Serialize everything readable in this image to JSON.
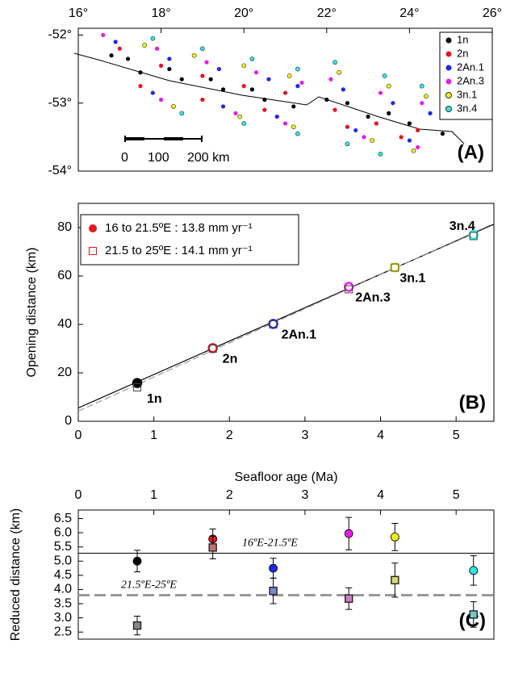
{
  "chart_data": [
    {
      "type": "scatter",
      "panel_label": "(A)",
      "xlim": [
        16,
        26
      ],
      "ylim": [
        -54,
        -51.9
      ],
      "xticks": [
        {
          "value": 16,
          "label": "16°"
        },
        {
          "value": 18,
          "label": "18°"
        },
        {
          "value": 20,
          "label": "20°"
        },
        {
          "value": 22,
          "label": "22°"
        },
        {
          "value": 24,
          "label": "24°"
        },
        {
          "value": 26,
          "label": "26°"
        }
      ],
      "yticks": [
        {
          "value": -52,
          "label": "-52°"
        },
        {
          "value": -53,
          "label": "-53°"
        },
        {
          "value": -54,
          "label": "-54°"
        }
      ],
      "xaxis_side": "top",
      "marker": "dot",
      "scale_bar_labels": [
        "0",
        "100",
        "200 km"
      ],
      "series": [
        {
          "name": "1n",
          "color": "#000000",
          "x": [
            16.8,
            17.5,
            18.5,
            19.5,
            20.5,
            21.2,
            22.0,
            23.0,
            24.0,
            24.8,
            17.2,
            18.2,
            19.2,
            20.2,
            22.5,
            23.5
          ],
          "values": [
            -52.3,
            -52.55,
            -52.65,
            -52.8,
            -52.95,
            -53.05,
            -52.95,
            -53.2,
            -53.3,
            -53.45,
            -52.35,
            -52.5,
            -52.65,
            -52.8,
            -53.0,
            -53.15
          ]
        },
        {
          "name": "2n",
          "color": "#e8141e",
          "x": [
            17.0,
            18.0,
            19.0,
            20.0,
            21.0,
            22.2,
            23.2,
            24.2,
            17.5,
            19.0,
            20.5,
            22.5,
            23.8
          ],
          "values": [
            -52.2,
            -52.45,
            -52.6,
            -52.75,
            -52.85,
            -53.1,
            -53.3,
            -53.4,
            -52.75,
            -52.95,
            -53.1,
            -53.35,
            -53.5
          ]
        },
        {
          "name": "2An.1",
          "color": "#1e28e6",
          "x": [
            16.9,
            18.2,
            19.4,
            20.6,
            21.3,
            22.4,
            23.6,
            24.5,
            17.8,
            19.5,
            20.8,
            22.7,
            24.0
          ],
          "values": [
            -52.1,
            -52.35,
            -52.5,
            -52.65,
            -52.75,
            -52.8,
            -53.0,
            -53.15,
            -52.85,
            -53.05,
            -53.2,
            -53.4,
            -53.55
          ]
        },
        {
          "name": "2An.3",
          "color": "#e61ee6",
          "x": [
            16.6,
            17.9,
            19.1,
            20.3,
            21.4,
            22.1,
            23.3,
            24.3,
            18.0,
            19.8,
            21.0,
            22.9,
            24.2
          ],
          "values": [
            -52.0,
            -52.2,
            -52.4,
            -52.55,
            -52.7,
            -52.65,
            -52.85,
            -53.0,
            -52.95,
            -53.15,
            -53.3,
            -53.5,
            -53.65
          ]
        },
        {
          "name": "3n.1",
          "color": "#f0f014",
          "x": [
            17.6,
            18.8,
            20.0,
            21.1,
            22.3,
            23.5,
            24.4,
            18.3,
            19.9,
            21.2,
            23.1,
            24.1
          ],
          "values": [
            -52.15,
            -52.3,
            -52.45,
            -52.6,
            -52.55,
            -52.75,
            -52.9,
            -53.05,
            -53.2,
            -53.35,
            -53.55,
            -53.7
          ]
        },
        {
          "name": "3n.4",
          "color": "#2ee6e6",
          "x": [
            17.8,
            19.0,
            20.2,
            21.3,
            22.2,
            23.4,
            24.3,
            18.5,
            20.0,
            21.3,
            22.5,
            23.3
          ],
          "values": [
            -52.05,
            -52.2,
            -52.35,
            -52.5,
            -52.4,
            -52.6,
            -52.75,
            -53.15,
            -53.3,
            -53.45,
            -53.6,
            -53.75
          ]
        }
      ]
    },
    {
      "type": "scatter",
      "panel_label": "(B)",
      "xlabel": "Seafloor age (Ma)",
      "ylabel": "Opening distance (km)",
      "xlim": [
        0,
        5.5
      ],
      "ylim": [
        0,
        90
      ],
      "xticks": [
        0,
        1,
        2,
        3,
        4,
        5
      ],
      "yticks": [
        0,
        20,
        40,
        60,
        80
      ],
      "xaxis_side": "bottom",
      "point_labels": [
        "1n",
        "2n",
        "2An.1",
        "2An.3",
        "3n.1",
        "3n.4"
      ],
      "series": [
        {
          "name": "16 to 21.5ºE : 13.8 mm yr⁻¹",
          "marker": "circle",
          "color": "#e8141e",
          "colors": [
            "#000000",
            "#e8141e",
            "#1e28e6",
            "#e61ee6",
            "#f0f014",
            "#2ee6e6"
          ],
          "x": [
            0.78,
            1.78,
            2.58,
            3.58,
            4.19,
            5.23
          ],
          "values": [
            15.8,
            30.2,
            40.2,
            55.5,
            63.5,
            77
          ]
        },
        {
          "name": "21.5 to 25ºE : 14.1 mm yr⁻¹",
          "marker": "square",
          "color": "#e8141e",
          "colors": [
            "#888888",
            "#e8141e",
            "#1e28e6",
            "#e61ee6",
            "#f0f014",
            "#2ee6e6"
          ],
          "x": [
            0.78,
            1.78,
            2.58,
            3.58,
            4.19,
            5.23
          ],
          "values": [
            14,
            30,
            40,
            54.5,
            63.5,
            76.5
          ]
        }
      ],
      "lines": [
        {
          "x": [
            0,
            5.5
          ],
          "values": [
            5.5,
            81.4
          ],
          "style": "solid",
          "color": "#000000"
        },
        {
          "x": [
            0,
            5.5
          ],
          "values": [
            4.2,
            81.75
          ],
          "style": "dashed",
          "color": "#999999"
        }
      ]
    },
    {
      "type": "scatter",
      "panel_label": "(C)",
      "ylabel": "Reduced distance (km)",
      "xlim": [
        0,
        5.5
      ],
      "ylim": [
        2.25,
        6.8
      ],
      "xticks": [
        0,
        1,
        2,
        3,
        4,
        5
      ],
      "yticks": [
        2.5,
        {
          "value": 3,
          "label": "3.0"
        },
        3.5,
        {
          "value": 4,
          "label": "4.0"
        },
        4.5,
        {
          "value": 5,
          "label": "5.0"
        },
        5.5,
        {
          "value": 6,
          "label": "6.0"
        },
        6.5
      ],
      "xaxis_side": "top",
      "series": [
        {
          "marker": "circle",
          "colors": [
            "#000000",
            "#e8141e",
            "#1e28e6",
            "#e61ee6",
            "#f0f014",
            "#2ee6e6"
          ],
          "x": [
            0.78,
            1.78,
            2.58,
            3.58,
            4.19,
            5.23
          ],
          "values": [
            5.0,
            5.78,
            4.75,
            5.97,
            5.85,
            4.67
          ],
          "errors": [
            0.38,
            0.35,
            0.35,
            0.57,
            0.48,
            0.52
          ]
        },
        {
          "marker": "square",
          "colors": [
            "#888888",
            "#c87070",
            "#7a86d0",
            "#d07ad0",
            "#d8d870",
            "#70c8c8"
          ],
          "x": [
            0.78,
            1.78,
            2.58,
            3.58,
            4.19,
            5.23
          ],
          "values": [
            2.73,
            5.48,
            3.95,
            3.68,
            4.33,
            3.12
          ],
          "errors": [
            0.33,
            0.4,
            0.45,
            0.38,
            0.6,
            0.45
          ]
        }
      ],
      "hlines": [
        {
          "value": 5.28,
          "label": "16ºE-21.5ºE",
          "style": "solid",
          "color": "#000000"
        },
        {
          "value": 3.8,
          "label": "21.5ºE-25ºE",
          "style": "dashed",
          "color": "#999999"
        }
      ]
    }
  ]
}
